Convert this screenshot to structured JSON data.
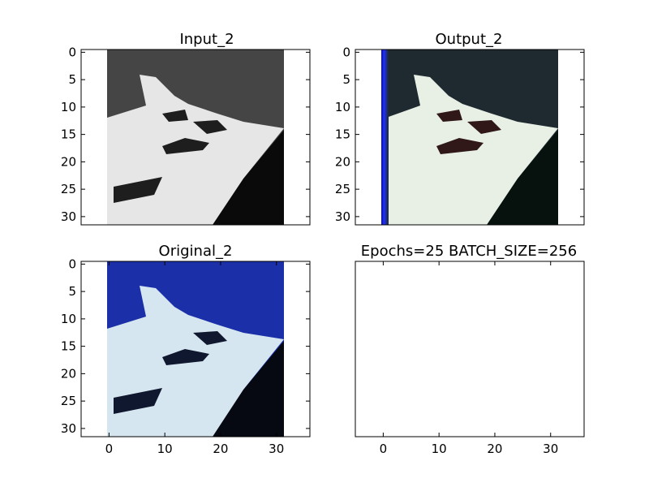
{
  "chart_data": [
    {
      "type": "heatmap",
      "title": "Input_2",
      "xlim": [
        -5,
        36
      ],
      "ylim": [
        31.5,
        -0.5
      ],
      "yticks": [
        0,
        5,
        10,
        15,
        20,
        25,
        30
      ],
      "xticks": [],
      "image": {
        "width": 32,
        "height": 32,
        "extent": [
          -0.5,
          31.5,
          31.5,
          -0.5
        ],
        "style": "grayscale"
      },
      "colors": {
        "sky": "#454545",
        "boat": "#e6e6e6",
        "shadow": "#1e1e1e",
        "water": "#0a0a0a"
      }
    },
    {
      "type": "heatmap",
      "title": "Output_2",
      "xlim": [
        -5,
        36
      ],
      "ylim": [
        31.5,
        -0.5
      ],
      "yticks": [
        0,
        5,
        10,
        15,
        20,
        25,
        30
      ],
      "xticks": [],
      "image": {
        "width": 32,
        "height": 32,
        "extent": [
          -0.5,
          31.5,
          31.5,
          -0.5
        ],
        "style": "color-reconstruction"
      },
      "colors": {
        "sky": "#1e2a30",
        "boat": "#e8f0e6",
        "shadow": "#301818",
        "water": "#07120f",
        "edge": "#1a22ff"
      }
    },
    {
      "type": "heatmap",
      "title": "Original_2",
      "xlim": [
        -5,
        36
      ],
      "ylim": [
        31.5,
        -0.5
      ],
      "yticks": [
        0,
        5,
        10,
        15,
        20,
        25,
        30
      ],
      "xticks": [
        0,
        10,
        20,
        30
      ],
      "image": {
        "width": 32,
        "height": 32,
        "extent": [
          -0.5,
          31.5,
          31.5,
          -0.5
        ],
        "style": "color"
      },
      "colors": {
        "sky": "#1a2fa8",
        "boat": "#d6e6f0",
        "shadow": "#101830",
        "water": "#060812"
      }
    },
    {
      "type": "heatmap",
      "title": "Epochs=25 BATCH_SIZE=256",
      "xlim": [
        -5,
        36
      ],
      "ylim": [
        31.5,
        -0.5
      ],
      "yticks": [],
      "xticks": [
        0,
        10,
        20,
        30
      ],
      "image": null
    }
  ]
}
